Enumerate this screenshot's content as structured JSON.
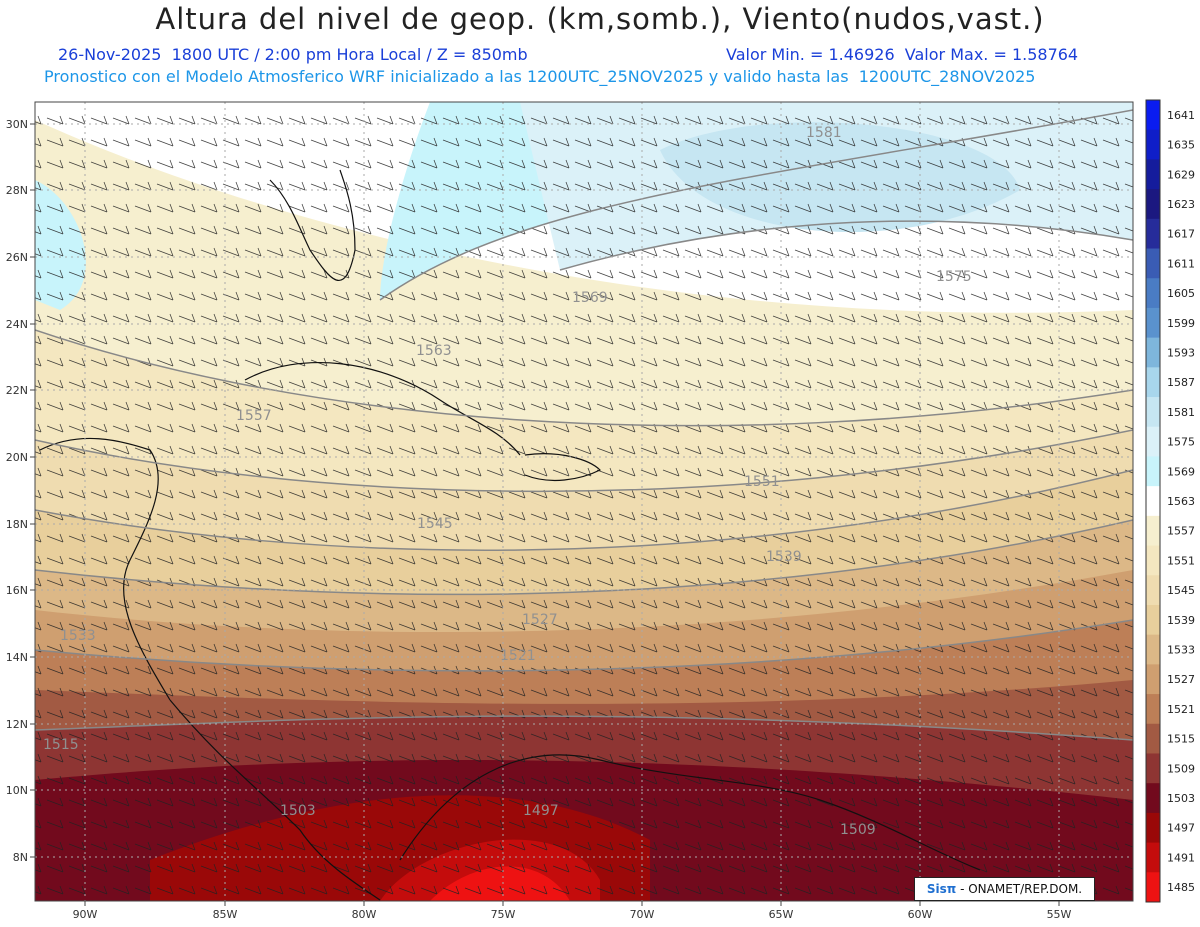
{
  "header": {
    "title": "Altura del nivel de geop. (km,somb.), Viento(nudos,vast.)",
    "subtitle_left": "26-Nov-2025  1800 UTC / 2:00 pm Hora Local / Z = 850mb",
    "subtitle_right": "Valor Min. = 1.46926  Valor Max. = 1.58764",
    "forecast_line": "Pronostico con el Modelo Atmosferico WRF inicializado a las 1200UTC_25NOV2025 y valido hasta las  1200UTC_28NOV2025"
  },
  "axes": {
    "lon_labels": [
      "90W",
      "85W",
      "80W",
      "75W",
      "70W",
      "65W",
      "60W",
      "55W"
    ],
    "lat_labels": [
      "30N",
      "28N",
      "26N",
      "24N",
      "22N",
      "20N",
      "18N",
      "16N",
      "14N",
      "12N",
      "10N",
      "8N"
    ]
  },
  "colorbar": {
    "levels": [
      "1641",
      "1635",
      "1629",
      "1623",
      "1617",
      "1611",
      "1605",
      "1599",
      "1593",
      "1587",
      "1581",
      "1575",
      "1569",
      "1563",
      "1557",
      "1551",
      "1545",
      "1539",
      "1533",
      "1527",
      "1521",
      "1515",
      "1509",
      "1503",
      "1497",
      "1491",
      "1485"
    ],
    "colors": [
      "#0a1cf0",
      "#0f1ec8",
      "#151c9c",
      "#1b1880",
      "#262c9a",
      "#3a5cb4",
      "#4a7cc4",
      "#5a92ce",
      "#7eb6dc",
      "#a8d6ec",
      "#c6e6f2",
      "#dbf1f8",
      "#c8f4fb",
      "#ffffff",
      "#f6efcf",
      "#f4e7c0",
      "#efdcb0",
      "#e8cf9c",
      "#dcb887",
      "#cf9f70",
      "#bd7f57",
      "#a25a43",
      "#8e3533",
      "#720a1d",
      "#9a0808",
      "#c40c0c",
      "#ee1212"
    ]
  },
  "contour_labels": [
    "1581",
    "1575",
    "1569",
    "1563",
    "1557",
    "1551",
    "1545",
    "1539",
    "1533",
    "1527",
    "1521",
    "1515",
    "1509",
    "1503",
    "1497"
  ],
  "credit": {
    "sis": "Sisπ",
    "org": "- ONAMET/REP.DOM."
  }
}
